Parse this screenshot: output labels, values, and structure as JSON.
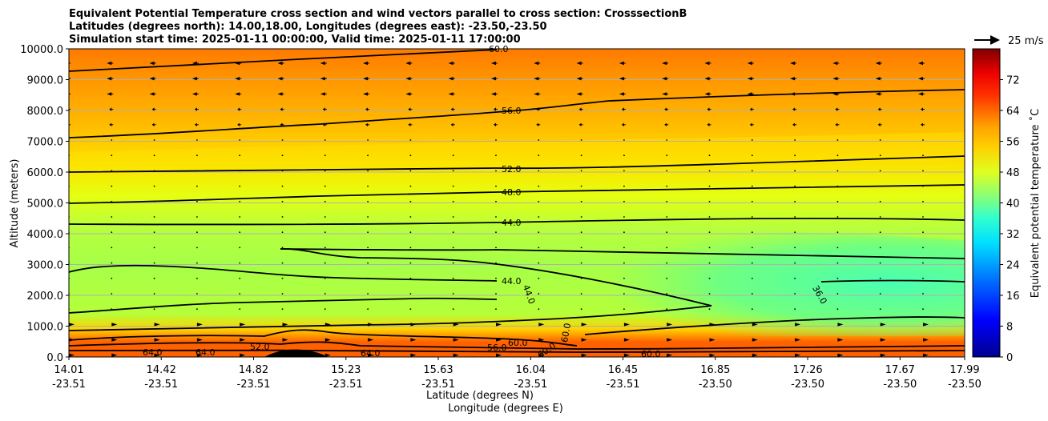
{
  "chart_data": {
    "type": "heatmap",
    "title_lines": [
      "Equivalent Potential Temperature cross section and wind vectors parallel to cross section: CrosssectionB",
      "Latitudes (degrees north): 14.00,18.00, Longitudes (degrees east): -23.50,-23.50",
      "Simulation start time: 2025-01-11 00:00:00, Valid time: 2025-01-11 17:00:00"
    ],
    "xlabel_lat": "Latitude (degrees N)",
    "xlabel_lon": "Longitude (degrees E)",
    "ylabel": "Altitude (meters)",
    "x_ticks": [
      {
        "lat": "14.01",
        "lon": "-23.51"
      },
      {
        "lat": "14.42",
        "lon": "-23.51"
      },
      {
        "lat": "14.82",
        "lon": "-23.51"
      },
      {
        "lat": "15.23",
        "lon": "-23.51"
      },
      {
        "lat": "15.63",
        "lon": "-23.51"
      },
      {
        "lat": "16.04",
        "lon": "-23.51"
      },
      {
        "lat": "16.45",
        "lon": "-23.51"
      },
      {
        "lat": "16.85",
        "lon": "-23.50"
      },
      {
        "lat": "17.26",
        "lon": "-23.50"
      },
      {
        "lat": "17.67",
        "lon": "-23.50"
      },
      {
        "lat": "17.99",
        "lon": "-23.50"
      }
    ],
    "y_ticks": [
      "10000.0",
      "9000.0",
      "8000.0",
      "7000.0",
      "6000.0",
      "5000.0",
      "4000.0",
      "3000.0",
      "2000.0",
      "1000.0",
      "0.0"
    ],
    "ylim": [
      0,
      10000
    ],
    "colorbar": {
      "label": "Equivalent potential temperature $^\\circ$C",
      "label_text": "Equivalent potential temperature ˚C",
      "range": [
        0,
        80
      ],
      "ticks": [
        "0",
        "8",
        "16",
        "24",
        "32",
        "40",
        "48",
        "56",
        "64",
        "72"
      ]
    },
    "wind_reference": "25 m/s",
    "contour_labels": [
      "60.0",
      "56.0",
      "52.0",
      "48.0",
      "44.0",
      "44.0",
      "44.0",
      "36.0",
      "60.0",
      "56.0",
      "60.0",
      "64.0",
      "64.0",
      "64.0",
      "52.0",
      "60.0",
      "60.0"
    ],
    "colors": {
      "grid": "#b0b0b0",
      "contour": "#000000"
    }
  }
}
